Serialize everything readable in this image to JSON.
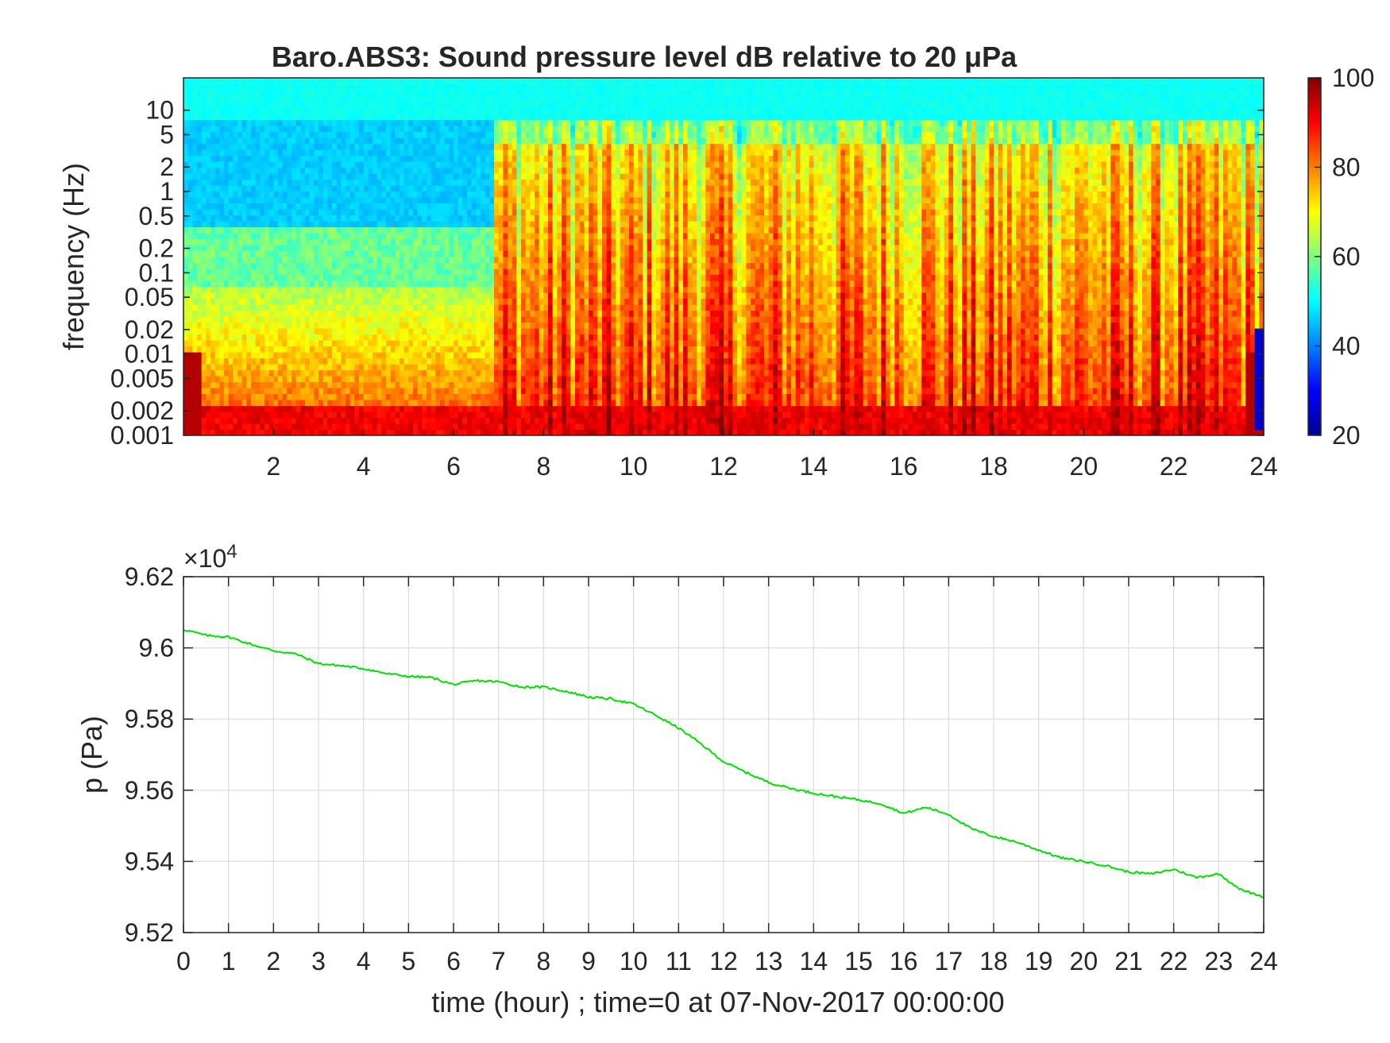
{
  "chart_data": [
    {
      "type": "heatmap",
      "title": "Baro.ABS3: Sound pressure level dB relative to 20 μPa",
      "xlabel": "",
      "ylabel": "frequency (Hz)",
      "x_range": [
        0,
        24
      ],
      "x_ticks": [
        "2",
        "4",
        "6",
        "8",
        "10",
        "12",
        "14",
        "16",
        "18",
        "20",
        "22",
        "24"
      ],
      "y_scale": "log",
      "y_range": [
        0.001,
        25
      ],
      "y_ticks": [
        "0.001",
        "0.002",
        "0.005",
        "0.01",
        "0.02",
        "0.05",
        "0.1",
        "0.2",
        "0.5",
        "1",
        "2",
        "5",
        "10"
      ],
      "colorbar": {
        "range": [
          20,
          100
        ],
        "ticks": [
          "20",
          "40",
          "60",
          "80",
          "100"
        ],
        "colormap": "jet"
      },
      "colors": {
        "quiet_band": "#1a8cff",
        "high_freq_cap": "#00e5ff",
        "low_freq_floor": "#9a0000"
      }
    },
    {
      "type": "line",
      "xlabel": "time (hour) ; time=0 at 07-Nov-2017 00:00:00",
      "ylabel": "p (Pa)",
      "exponent_label": "×10",
      "exponent_power": "4",
      "x_range": [
        0,
        24
      ],
      "y_range": [
        9.52,
        9.62
      ],
      "x_ticks": [
        "0",
        "1",
        "2",
        "3",
        "4",
        "5",
        "6",
        "7",
        "8",
        "9",
        "10",
        "11",
        "12",
        "13",
        "14",
        "15",
        "16",
        "17",
        "18",
        "19",
        "20",
        "21",
        "22",
        "23",
        "24"
      ],
      "y_ticks": [
        "9.52",
        "9.54",
        "9.56",
        "9.58",
        "9.6",
        "9.62"
      ],
      "grid": true,
      "series": [
        {
          "color": "#00e000",
          "x": [
            0,
            0.5,
            1,
            1.5,
            2,
            2.5,
            3,
            3.5,
            4,
            4.5,
            5,
            5.5,
            6,
            6.5,
            7,
            7.5,
            8,
            8.5,
            9,
            9.5,
            10,
            10.5,
            11,
            11.5,
            12,
            12.5,
            13,
            13.5,
            14,
            14.5,
            15,
            15.5,
            16,
            16.5,
            17,
            17.5,
            18,
            18.5,
            19,
            19.5,
            20,
            20.5,
            21,
            21.5,
            22,
            22.5,
            23,
            23.5,
            24
          ],
          "y": [
            9.6052,
            9.6035,
            9.6031,
            9.601,
            9.5992,
            9.5983,
            9.5956,
            9.595,
            9.5942,
            9.5928,
            9.592,
            9.5917,
            9.5897,
            9.5908,
            9.5905,
            9.589,
            9.589,
            9.5878,
            9.5862,
            9.5857,
            9.5842,
            9.581,
            9.5775,
            9.573,
            9.568,
            9.565,
            9.5622,
            9.5605,
            9.5592,
            9.5582,
            9.5573,
            9.5562,
            9.5535,
            9.5552,
            9.5532,
            9.5492,
            9.547,
            9.5455,
            9.5432,
            9.541,
            9.54,
            9.5388,
            9.537,
            9.5365,
            9.5378,
            9.5355,
            9.5365,
            9.532,
            9.53
          ]
        }
      ]
    }
  ]
}
